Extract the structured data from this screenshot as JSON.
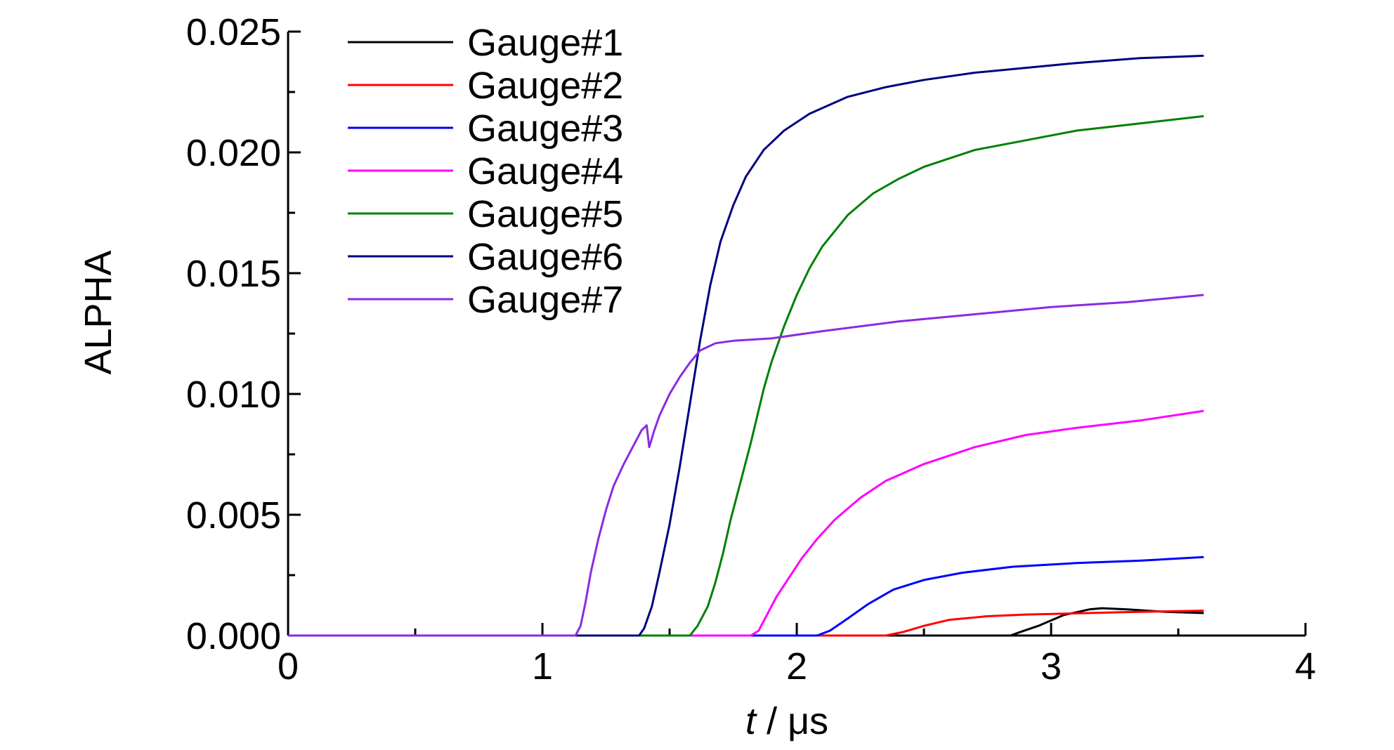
{
  "chart_data": {
    "type": "line",
    "xlabel_italic": "t",
    "xlabel_rest": " / μs",
    "ylabel": "ALPHA",
    "xlim": [
      0,
      4
    ],
    "ylim": [
      0,
      0.025
    ],
    "x_ticks": [
      0,
      1,
      2,
      3,
      4
    ],
    "x_tick_labels": [
      "0",
      "1",
      "2",
      "3",
      "4"
    ],
    "y_ticks": [
      0,
      0.005,
      0.01,
      0.015,
      0.02,
      0.025
    ],
    "y_tick_labels": [
      "0.000",
      "0.005",
      "0.010",
      "0.015",
      "0.020",
      "0.025"
    ],
    "grid": false,
    "legend_position": "top-left",
    "series": [
      {
        "name": "Gauge#1",
        "color": "#000000",
        "points": [
          [
            0,
            0
          ],
          [
            2.84,
            0
          ],
          [
            2.88,
            0.00015
          ],
          [
            2.95,
            0.0004
          ],
          [
            3.05,
            0.00085
          ],
          [
            3.15,
            0.00108
          ],
          [
            3.2,
            0.00113
          ],
          [
            3.3,
            0.00108
          ],
          [
            3.45,
            0.00098
          ],
          [
            3.6,
            0.00093
          ]
        ]
      },
      {
        "name": "Gauge#2",
        "color": "#ff0000",
        "points": [
          [
            0,
            0
          ],
          [
            2.35,
            0
          ],
          [
            2.42,
            0.00015
          ],
          [
            2.5,
            0.0004
          ],
          [
            2.6,
            0.00065
          ],
          [
            2.75,
            0.0008
          ],
          [
            2.9,
            0.00087
          ],
          [
            3.1,
            0.00092
          ],
          [
            3.3,
            0.00097
          ],
          [
            3.6,
            0.00103
          ]
        ]
      },
      {
        "name": "Gauge#3",
        "color": "#0000ff",
        "points": [
          [
            0,
            0
          ],
          [
            2.08,
            0
          ],
          [
            2.13,
            0.0002
          ],
          [
            2.2,
            0.0007
          ],
          [
            2.28,
            0.0013
          ],
          [
            2.38,
            0.0019
          ],
          [
            2.5,
            0.0023
          ],
          [
            2.65,
            0.0026
          ],
          [
            2.85,
            0.00285
          ],
          [
            3.1,
            0.003
          ],
          [
            3.35,
            0.0031
          ],
          [
            3.6,
            0.00325
          ]
        ]
      },
      {
        "name": "Gauge#4",
        "color": "#ff00ff",
        "points": [
          [
            0,
            0
          ],
          [
            1.82,
            0
          ],
          [
            1.85,
            0.0002
          ],
          [
            1.88,
            0.0008
          ],
          [
            1.92,
            0.0016
          ],
          [
            1.97,
            0.0024
          ],
          [
            2.02,
            0.0032
          ],
          [
            2.08,
            0.004
          ],
          [
            2.15,
            0.0048
          ],
          [
            2.25,
            0.0057
          ],
          [
            2.35,
            0.0064
          ],
          [
            2.5,
            0.0071
          ],
          [
            2.7,
            0.0078
          ],
          [
            2.9,
            0.0083
          ],
          [
            3.1,
            0.0086
          ],
          [
            3.35,
            0.0089
          ],
          [
            3.6,
            0.0093
          ]
        ]
      },
      {
        "name": "Gauge#5",
        "color": "#008000",
        "points": [
          [
            0,
            0
          ],
          [
            1.58,
            0
          ],
          [
            1.61,
            0.0004
          ],
          [
            1.65,
            0.0012
          ],
          [
            1.68,
            0.0022
          ],
          [
            1.71,
            0.0034
          ],
          [
            1.74,
            0.0048
          ],
          [
            1.78,
            0.0064
          ],
          [
            1.82,
            0.008
          ],
          [
            1.87,
            0.0102
          ],
          [
            1.9,
            0.0113
          ],
          [
            1.95,
            0.0128
          ],
          [
            2.0,
            0.0141
          ],
          [
            2.05,
            0.0152
          ],
          [
            2.1,
            0.0161
          ],
          [
            2.2,
            0.0174
          ],
          [
            2.3,
            0.0183
          ],
          [
            2.4,
            0.0189
          ],
          [
            2.5,
            0.0194
          ],
          [
            2.7,
            0.0201
          ],
          [
            2.9,
            0.0205
          ],
          [
            3.1,
            0.0209
          ],
          [
            3.35,
            0.0212
          ],
          [
            3.6,
            0.0215
          ]
        ]
      },
      {
        "name": "Gauge#6",
        "color": "#000080",
        "points": [
          [
            0,
            0
          ],
          [
            1.38,
            0
          ],
          [
            1.4,
            0.0003
          ],
          [
            1.43,
            0.0012
          ],
          [
            1.46,
            0.0026
          ],
          [
            1.5,
            0.0046
          ],
          [
            1.54,
            0.007
          ],
          [
            1.58,
            0.0096
          ],
          [
            1.62,
            0.0122
          ],
          [
            1.66,
            0.0145
          ],
          [
            1.7,
            0.0163
          ],
          [
            1.75,
            0.0178
          ],
          [
            1.8,
            0.019
          ],
          [
            1.87,
            0.0201
          ],
          [
            1.95,
            0.0209
          ],
          [
            2.05,
            0.0216
          ],
          [
            2.2,
            0.0223
          ],
          [
            2.35,
            0.0227
          ],
          [
            2.5,
            0.023
          ],
          [
            2.7,
            0.0233
          ],
          [
            2.9,
            0.0235
          ],
          [
            3.1,
            0.0237
          ],
          [
            3.35,
            0.0239
          ],
          [
            3.6,
            0.024
          ]
        ]
      },
      {
        "name": "Gauge#7",
        "color": "#8a2be2",
        "points": [
          [
            0,
            0
          ],
          [
            1.13,
            0
          ],
          [
            1.15,
            0.0004
          ],
          [
            1.17,
            0.0014
          ],
          [
            1.19,
            0.0026
          ],
          [
            1.22,
            0.004
          ],
          [
            1.25,
            0.0052
          ],
          [
            1.28,
            0.0062
          ],
          [
            1.32,
            0.0071
          ],
          [
            1.36,
            0.0079
          ],
          [
            1.39,
            0.0085
          ],
          [
            1.41,
            0.0087
          ],
          [
            1.42,
            0.0078
          ],
          [
            1.44,
            0.0085
          ],
          [
            1.46,
            0.0091
          ],
          [
            1.5,
            0.01
          ],
          [
            1.54,
            0.0107
          ],
          [
            1.58,
            0.0113
          ],
          [
            1.62,
            0.0118
          ],
          [
            1.68,
            0.0121
          ],
          [
            1.75,
            0.0122
          ],
          [
            1.9,
            0.0123
          ],
          [
            2.1,
            0.0126
          ],
          [
            2.4,
            0.013
          ],
          [
            2.7,
            0.0133
          ],
          [
            3.0,
            0.0136
          ],
          [
            3.3,
            0.0138
          ],
          [
            3.6,
            0.0141
          ]
        ]
      }
    ]
  }
}
